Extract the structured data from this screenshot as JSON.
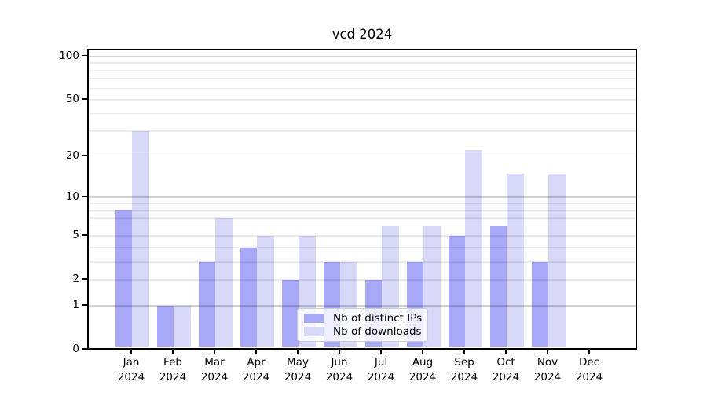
{
  "figure": {
    "background": "#ffffff"
  },
  "chart_data": {
    "type": "bar",
    "title": "vcd 2024",
    "categories": [
      "Jan",
      "Feb",
      "Mar",
      "Apr",
      "May",
      "Jun",
      "Jul",
      "Aug",
      "Sep",
      "Oct",
      "Nov",
      "Dec"
    ],
    "category_year": "2024",
    "series": [
      {
        "name": "Nb of distinct IPs",
        "color": "#a8a8f8",
        "values": [
          8,
          1,
          3,
          4,
          2,
          3,
          2,
          3,
          5,
          6,
          3,
          0
        ]
      },
      {
        "name": "Nb of downloads",
        "color": "#d8d8f8",
        "values": [
          30,
          1,
          7,
          5,
          5,
          3,
          6,
          6,
          22,
          15,
          15,
          0
        ]
      }
    ],
    "xlabel": "",
    "ylabel": "",
    "yscale": "log1p",
    "ylim": [
      0,
      110
    ],
    "ytick_labels": [
      100,
      50,
      20,
      10,
      5,
      2,
      1,
      0
    ],
    "major_gridlines": [
      1,
      10,
      100
    ],
    "minor_gridlines": [
      2,
      3,
      4,
      5,
      6,
      7,
      8,
      9,
      20,
      30,
      40,
      50,
      60,
      70,
      80,
      90
    ],
    "grid": true,
    "legend_position": "lower-center",
    "colors": {
      "axis": "#000000",
      "text": "#000000",
      "grid_major": "#d2d2d2",
      "grid_minor": "#ebebeb",
      "legend_bg": "#ffffff",
      "legend_border": "#cccccc"
    }
  }
}
